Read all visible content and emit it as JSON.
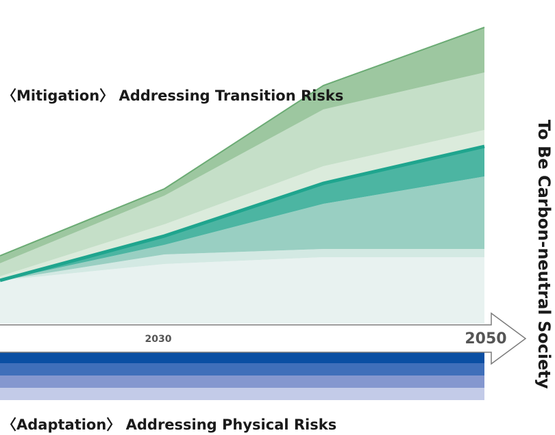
{
  "mitigation_label": "〈Mitigation〉 Addressing Transition Risks",
  "adaptation_label": "〈Adaptation〉 Addressing Physical Risks",
  "timeline": {
    "mid_year": "2030",
    "end_year": "2050"
  },
  "goal_label": "To Be Carbon-neutral Society",
  "colors": {
    "green_dark": "#9dc7a0",
    "green_light": "#c5dfc8",
    "green_pale": "#dbebdc",
    "teal_band": "#1fa58e",
    "teal_mid": "#4cb5a2",
    "teal_light": "#99cfc2",
    "teal_pale": "#d3e9e3",
    "base_fill": "#e8f2f0",
    "blue_1": "#0a4fa3",
    "blue_2": "#3f6fba",
    "blue_3": "#8497cf",
    "blue_4": "#c3cbe8"
  }
}
